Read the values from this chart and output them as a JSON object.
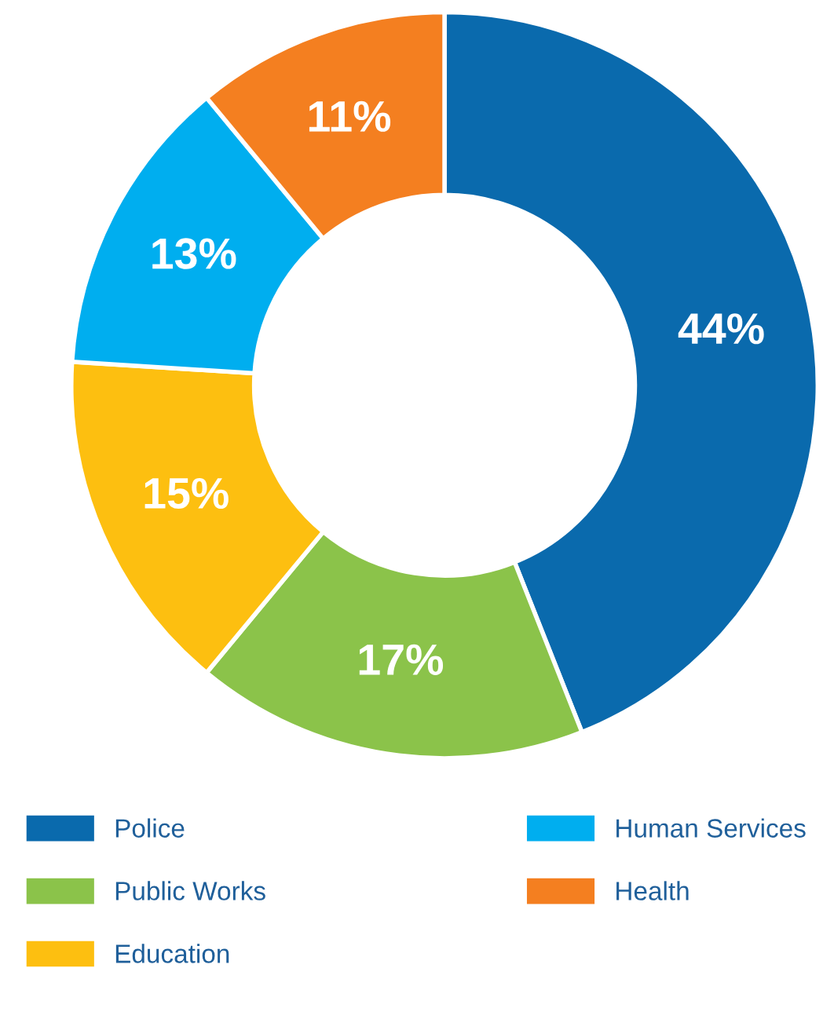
{
  "chart_data": {
    "type": "donut",
    "categories": [
      "Police",
      "Public Works",
      "Education",
      "Human Services",
      "Health"
    ],
    "values": [
      44,
      17,
      15,
      13,
      11
    ],
    "colors": [
      "#0a6aad",
      "#8bc34a",
      "#fdbf10",
      "#00aeef",
      "#f47f20"
    ],
    "value_labels": [
      "44%",
      "17%",
      "15%",
      "13%",
      "11%"
    ],
    "legend": "bottom"
  }
}
